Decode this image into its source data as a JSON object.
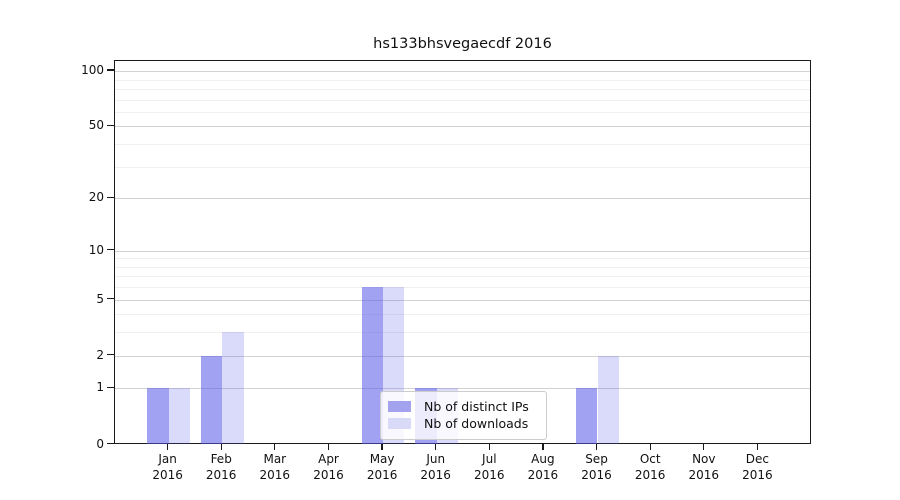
{
  "title": "hs133bhsvegaecdf 2016",
  "chart_data": {
    "type": "bar",
    "title": "hs133bhsvegaecdf 2016",
    "xlabel": "",
    "ylabel": "",
    "yscale": "log1p",
    "grid": true,
    "ylim": [
      0,
      114
    ],
    "ytick_values": [
      0,
      1,
      2,
      5,
      10,
      20,
      50,
      100
    ],
    "ytick_labels": [
      "0",
      "1",
      "2",
      "5",
      "10",
      "20",
      "50",
      "100"
    ],
    "minor_grid_values": [
      3,
      4,
      6,
      7,
      8,
      9,
      30,
      40,
      60,
      70,
      80,
      90
    ],
    "categories": [
      {
        "month": "Jan",
        "year": "2016"
      },
      {
        "month": "Feb",
        "year": "2016"
      },
      {
        "month": "Mar",
        "year": "2016"
      },
      {
        "month": "Apr",
        "year": "2016"
      },
      {
        "month": "May",
        "year": "2016"
      },
      {
        "month": "Jun",
        "year": "2016"
      },
      {
        "month": "Jul",
        "year": "2016"
      },
      {
        "month": "Aug",
        "year": "2016"
      },
      {
        "month": "Sep",
        "year": "2016"
      },
      {
        "month": "Oct",
        "year": "2016"
      },
      {
        "month": "Nov",
        "year": "2016"
      },
      {
        "month": "Dec",
        "year": "2016"
      }
    ],
    "series": [
      {
        "name": "Nb of distinct IPs",
        "color": "#a2a2ee",
        "fill": "rgba(86,86,232,0.55)",
        "values": [
          1,
          2,
          0,
          0,
          6,
          1,
          0,
          0,
          1,
          0,
          0,
          0
        ]
      },
      {
        "name": "Nb of downloads",
        "color": "#d9d9f8",
        "fill": "rgba(86,86,232,0.22)",
        "values": [
          1,
          3,
          0,
          0,
          6,
          1,
          0,
          0,
          2,
          0,
          0,
          0
        ]
      }
    ],
    "legend_position": "lower center"
  }
}
